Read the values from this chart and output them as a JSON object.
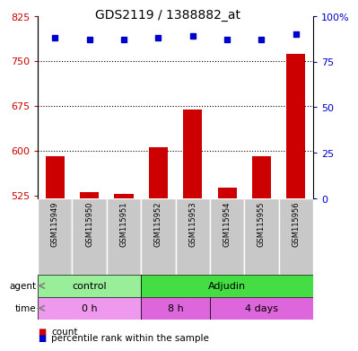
{
  "title": "GDS2119 / 1388882_at",
  "samples": [
    "GSM115949",
    "GSM115950",
    "GSM115951",
    "GSM115952",
    "GSM115953",
    "GSM115954",
    "GSM115955",
    "GSM115956"
  ],
  "counts": [
    590,
    530,
    527,
    605,
    668,
    538,
    590,
    762
  ],
  "percentiles": [
    88,
    87,
    87,
    88,
    89,
    87,
    87,
    90
  ],
  "ylim_left": [
    520,
    825
  ],
  "ylim_right": [
    0,
    100
  ],
  "yticks_left": [
    525,
    600,
    675,
    750,
    825
  ],
  "yticks_right": [
    0,
    25,
    50,
    75,
    100
  ],
  "ytick_right_labels": [
    "0",
    "25",
    "50",
    "75",
    "100%"
  ],
  "bar_color": "#cc0000",
  "dot_color": "#0000cc",
  "agent_groups": [
    {
      "label": "control",
      "start": 0,
      "end": 3,
      "color": "#99ee99"
    },
    {
      "label": "Adjudin",
      "start": 3,
      "end": 8,
      "color": "#44dd44"
    }
  ],
  "time_groups": [
    {
      "label": "0 h",
      "start": 0,
      "end": 3,
      "color": "#ee99ee"
    },
    {
      "label": "8 h",
      "start": 3,
      "end": 5,
      "color": "#dd66dd"
    },
    {
      "label": "4 days",
      "start": 5,
      "end": 8,
      "color": "#dd66dd"
    }
  ],
  "bar_baseline": 520,
  "tick_color_left": "#cc0000",
  "tick_color_right": "#0000cc",
  "sample_box_color": "#c8c8c8",
  "legend_count_color": "#cc0000",
  "legend_dot_color": "#0000cc"
}
